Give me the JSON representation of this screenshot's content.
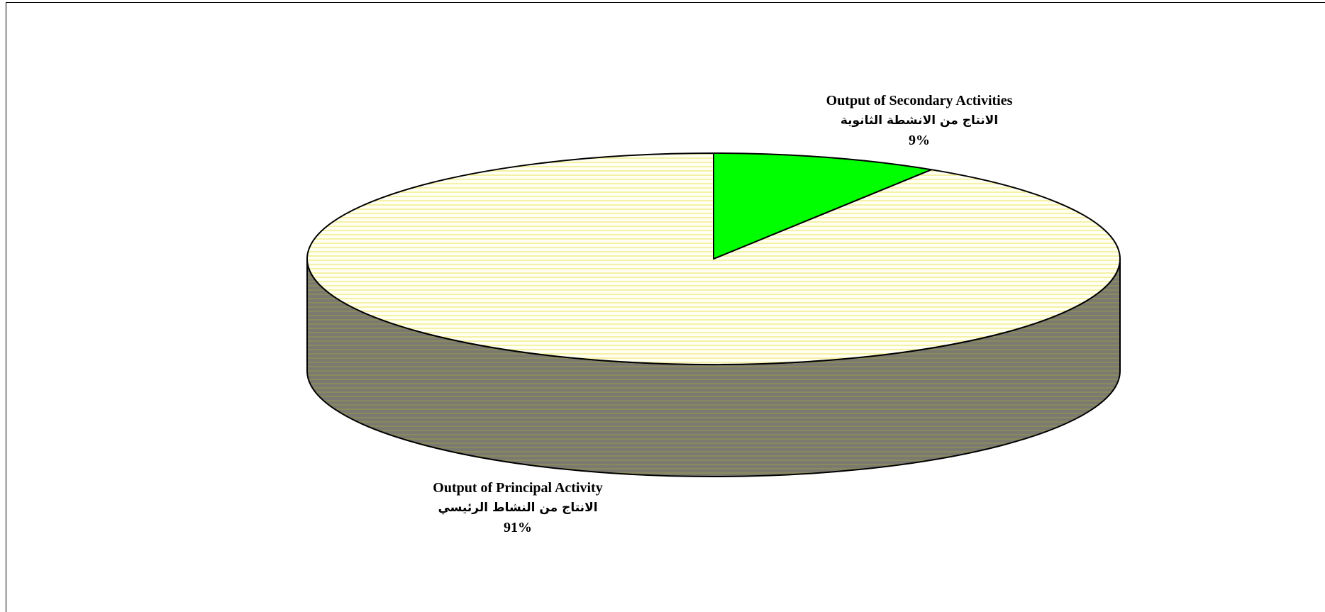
{
  "chart_data": {
    "type": "pie",
    "style": "3d",
    "title": "",
    "slices": [
      {
        "label_en": "Output of Principal Activity",
        "label_ar": "الانتاج من النشاط الرئيسي",
        "percent_label": "91%",
        "value": 91,
        "color": "#fffde0",
        "side_color": "#7e7e6a"
      },
      {
        "label_en": "Output of Secondary Activities",
        "label_ar": "الانتاج من الانشطة الثانوية",
        "percent_label": "9%",
        "value": 9,
        "color": "#00ff00",
        "side_color": "#00a000"
      }
    ],
    "start_angle_deg": 0,
    "legend": "none"
  }
}
